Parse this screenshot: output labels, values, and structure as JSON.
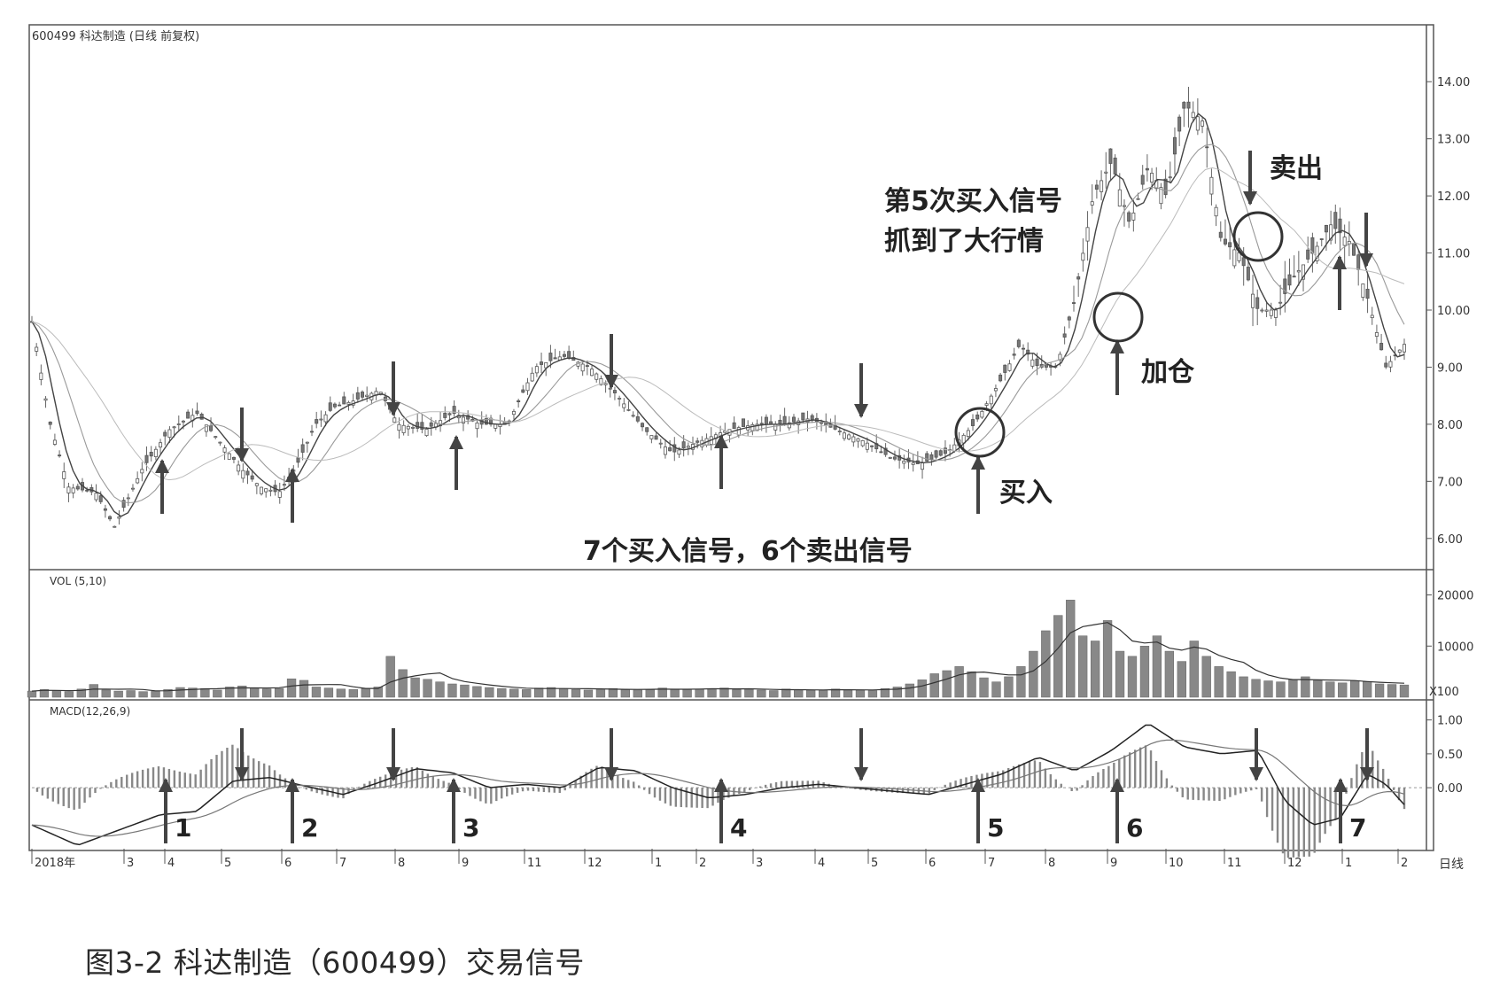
{
  "chart_data": [
    {
      "type": "candlestick",
      "title": "600499 科达制造 (日线 前复权)",
      "x_axis_labels": [
        "2018年",
        "3",
        "4",
        "5",
        "6",
        "7",
        "8",
        "9",
        "11",
        "12",
        "1",
        "2",
        "3",
        "4",
        "5",
        "6",
        "7",
        "8",
        "9",
        "10",
        "11",
        "12",
        "1",
        "2"
      ],
      "y_ticks": [
        "14.00",
        "13.00",
        "12.00",
        "11.00",
        "10.00",
        "9.00",
        "8.00",
        "7.00",
        "6.00"
      ],
      "ylim": [
        5.5,
        14.5
      ],
      "close_points": [
        {
          "x": 0,
          "y": 9.8
        },
        {
          "x": 2,
          "y": 8.0
        },
        {
          "x": 4,
          "y": 6.9
        },
        {
          "x": 7,
          "y": 6.8
        },
        {
          "x": 9,
          "y": 6.2
        },
        {
          "x": 12,
          "y": 7.2
        },
        {
          "x": 15,
          "y": 7.9
        },
        {
          "x": 18,
          "y": 8.2
        },
        {
          "x": 21,
          "y": 7.6
        },
        {
          "x": 23,
          "y": 7.2
        },
        {
          "x": 25,
          "y": 6.9
        },
        {
          "x": 27,
          "y": 6.8
        },
        {
          "x": 29,
          "y": 7.3
        },
        {
          "x": 31,
          "y": 8.0
        },
        {
          "x": 33,
          "y": 8.3
        },
        {
          "x": 35,
          "y": 8.4
        },
        {
          "x": 38,
          "y": 8.6
        },
        {
          "x": 40,
          "y": 8.0
        },
        {
          "x": 43,
          "y": 7.9
        },
        {
          "x": 46,
          "y": 8.2
        },
        {
          "x": 49,
          "y": 8.0
        },
        {
          "x": 52,
          "y": 8.0
        },
        {
          "x": 55,
          "y": 9.0
        },
        {
          "x": 58,
          "y": 9.2
        },
        {
          "x": 61,
          "y": 9.0
        },
        {
          "x": 64,
          "y": 8.5
        },
        {
          "x": 67,
          "y": 7.9
        },
        {
          "x": 70,
          "y": 7.5
        },
        {
          "x": 73,
          "y": 7.7
        },
        {
          "x": 76,
          "y": 7.9
        },
        {
          "x": 79,
          "y": 8.0
        },
        {
          "x": 82,
          "y": 8.0
        },
        {
          "x": 85,
          "y": 8.1
        },
        {
          "x": 88,
          "y": 7.9
        },
        {
          "x": 91,
          "y": 7.7
        },
        {
          "x": 94,
          "y": 7.4
        },
        {
          "x": 97,
          "y": 7.3
        },
        {
          "x": 100,
          "y": 7.5
        },
        {
          "x": 103,
          "y": 8.0
        },
        {
          "x": 106,
          "y": 8.8
        },
        {
          "x": 108,
          "y": 9.4
        },
        {
          "x": 110,
          "y": 9.0
        },
        {
          "x": 112,
          "y": 9.0
        },
        {
          "x": 114,
          "y": 10.2
        },
        {
          "x": 116,
          "y": 12.0
        },
        {
          "x": 118,
          "y": 12.6
        },
        {
          "x": 120,
          "y": 11.5
        },
        {
          "x": 122,
          "y": 12.5
        },
        {
          "x": 124,
          "y": 12.0
        },
        {
          "x": 126,
          "y": 13.6
        },
        {
          "x": 128,
          "y": 13.3
        },
        {
          "x": 130,
          "y": 11.2
        },
        {
          "x": 132,
          "y": 11.0
        },
        {
          "x": 134,
          "y": 10.0
        },
        {
          "x": 136,
          "y": 10.0
        },
        {
          "x": 138,
          "y": 10.6
        },
        {
          "x": 140,
          "y": 11.0
        },
        {
          "x": 142,
          "y": 11.5
        },
        {
          "x": 144,
          "y": 11.2
        },
        {
          "x": 146,
          "y": 10.2
        },
        {
          "x": 148,
          "y": 9.0
        },
        {
          "x": 150,
          "y": 9.4
        }
      ],
      "annotations": [
        {
          "text": "第5次买入信号",
          "line": 1
        },
        {
          "text": "抓到了大行情",
          "line": 2
        },
        {
          "text": "卖出"
        },
        {
          "text": "加仓"
        },
        {
          "text": "买入"
        },
        {
          "text": "7个买入信号，6个卖出信号"
        }
      ]
    },
    {
      "type": "bar",
      "title": "VOL (5,10)",
      "y_ticks": [
        "20000",
        "10000"
      ],
      "unit_label": "X100",
      "ylim": [
        0,
        22000
      ],
      "values": [
        1200,
        1500,
        1300,
        1100,
        1600,
        2500,
        1400,
        1200,
        1300,
        1100,
        1200,
        1500,
        1900,
        1800,
        1700,
        1400,
        2000,
        2200,
        1800,
        1600,
        1700,
        3600,
        3300,
        2000,
        1800,
        1600,
        1500,
        1700,
        2000,
        8000,
        5400,
        3800,
        3500,
        3000,
        2600,
        2400,
        2100,
        1900,
        1700,
        1600,
        1500,
        1800,
        1900,
        1700,
        1500,
        1400,
        1600,
        1700,
        1500,
        1400,
        1500,
        1800,
        1600,
        1500,
        1600,
        1700,
        1800,
        1500,
        1600,
        1400,
        1300,
        1600,
        1500,
        1400,
        1300,
        1600,
        1500,
        1400,
        1300,
        1700,
        2000,
        2600,
        3400,
        4600,
        5200,
        6000,
        5000,
        3800,
        3000,
        4000,
        6000,
        9000,
        13000,
        16000,
        19000,
        12000,
        11000,
        15000,
        9000,
        8000,
        10000,
        12000,
        9000,
        7000,
        11000,
        8000,
        6000,
        5000,
        4000,
        3500,
        3200,
        3000,
        3500,
        4000,
        3300,
        3000,
        2800,
        3200,
        3000,
        2600,
        2500,
        2400
      ]
    },
    {
      "type": "line",
      "title": "MACD(12,26,9)",
      "y_ticks": [
        "1.00",
        "0.50",
        "0.00"
      ],
      "ylim": [
        -0.9,
        1.1
      ],
      "signal_labels": [
        "1",
        "2",
        "3",
        "4",
        "5",
        "6",
        "7"
      ],
      "dif_points": [
        {
          "x": 0,
          "y": -0.55
        },
        {
          "x": 5,
          "y": -0.85
        },
        {
          "x": 10,
          "y": -0.6
        },
        {
          "x": 14,
          "y": -0.4
        },
        {
          "x": 18,
          "y": -0.35
        },
        {
          "x": 22,
          "y": 0.1
        },
        {
          "x": 26,
          "y": 0.15
        },
        {
          "x": 30,
          "y": 0.02
        },
        {
          "x": 34,
          "y": -0.1
        },
        {
          "x": 38,
          "y": 0.08
        },
        {
          "x": 42,
          "y": 0.28
        },
        {
          "x": 46,
          "y": 0.22
        },
        {
          "x": 50,
          "y": 0.0
        },
        {
          "x": 54,
          "y": 0.05
        },
        {
          "x": 58,
          "y": 0.0
        },
        {
          "x": 62,
          "y": 0.3
        },
        {
          "x": 66,
          "y": 0.25
        },
        {
          "x": 70,
          "y": 0.0
        },
        {
          "x": 74,
          "y": -0.15
        },
        {
          "x": 78,
          "y": -0.1
        },
        {
          "x": 82,
          "y": 0.0
        },
        {
          "x": 86,
          "y": 0.05
        },
        {
          "x": 90,
          "y": 0.0
        },
        {
          "x": 94,
          "y": -0.05
        },
        {
          "x": 98,
          "y": -0.1
        },
        {
          "x": 102,
          "y": 0.05
        },
        {
          "x": 106,
          "y": 0.2
        },
        {
          "x": 110,
          "y": 0.45
        },
        {
          "x": 114,
          "y": 0.25
        },
        {
          "x": 118,
          "y": 0.55
        },
        {
          "x": 122,
          "y": 0.95
        },
        {
          "x": 126,
          "y": 0.6
        },
        {
          "x": 130,
          "y": 0.5
        },
        {
          "x": 134,
          "y": 0.55
        },
        {
          "x": 137,
          "y": -0.2
        },
        {
          "x": 140,
          "y": -0.55
        },
        {
          "x": 143,
          "y": -0.45
        },
        {
          "x": 146,
          "y": 0.2
        },
        {
          "x": 148,
          "y": 0.05
        },
        {
          "x": 150,
          "y": -0.25
        }
      ]
    }
  ],
  "caption": "图3-2 科达制造（600499）交易信号",
  "annotation_labels": {
    "buy_signal_line1": "第5次买入信号",
    "buy_signal_line2": "抓到了大行情",
    "sell_label": "卖出",
    "add_label": "加仓",
    "buy_label": "买入",
    "summary": "7个买入信号，6个卖出信号",
    "vol_title": "VOL (5,10)",
    "macd_title": "MACD(12,26,9)",
    "price_title": "600499 科达制造 (日线 前复权)",
    "period_label": "日线",
    "unit_label": "X100"
  }
}
